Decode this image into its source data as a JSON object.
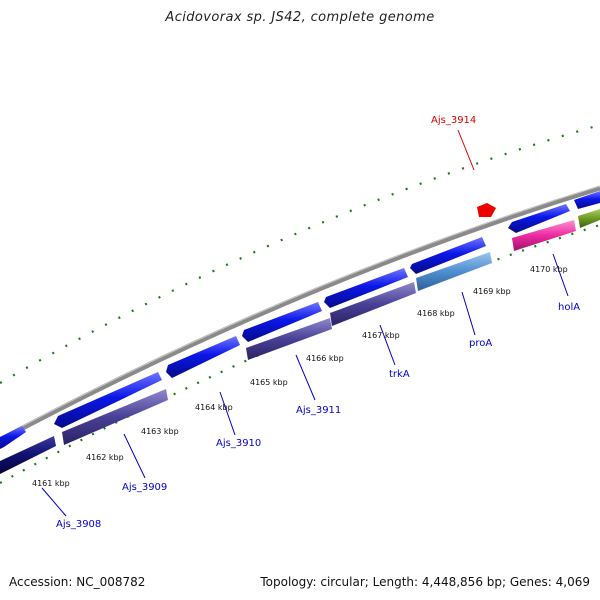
{
  "title": "Acidovorax sp. JS42, complete genome",
  "footer": {
    "accession": "Accession: NC_008782",
    "summary": "Topology: circular; Length: 4,448,856 bp; Genes: 4,069"
  },
  "colors": {
    "label_blue": "#0000cc",
    "label_red": "#dd0000",
    "forward_gene": "#0b17e8",
    "reverse_gene": "#4a4096",
    "backbone": "#888888",
    "ticks": "#1a7a1a",
    "pseudo": "#ee0000",
    "pink_gene": "#ee2aa0",
    "light_gene": "#4f8fcf",
    "olive_gene": "#6a9a22",
    "dark_gene": "#101070"
  },
  "kbp_ticks": [
    "4161 kbp",
    "4162 kbp",
    "4163 kbp",
    "4164 kbp",
    "4165 kbp",
    "4166 kbp",
    "4167 kbp",
    "4168 kbp",
    "4169 kbp",
    "4170 kbp"
  ],
  "gene_labels": [
    {
      "text": "Ajs_3908",
      "color": "blue"
    },
    {
      "text": "Ajs_3909",
      "color": "blue"
    },
    {
      "text": "Ajs_3910",
      "color": "blue"
    },
    {
      "text": "Ajs_3911",
      "color": "blue"
    },
    {
      "text": "trkA",
      "color": "blue"
    },
    {
      "text": "proA",
      "color": "blue"
    },
    {
      "text": "holA",
      "color": "blue"
    },
    {
      "text": "Ajs_3914",
      "color": "red"
    }
  ]
}
